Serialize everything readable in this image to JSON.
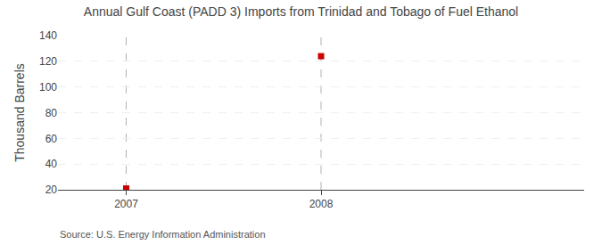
{
  "chart_data": {
    "type": "scatter",
    "title": "Annual Gulf Coast (PADD 3) Imports from Trinidad and Tobago of Fuel Ethanol",
    "ylabel": "Thousand Barrels",
    "x": [
      2007,
      2008
    ],
    "values": [
      21,
      124
    ],
    "color": "#cc0000",
    "marker": "square",
    "xlim": [
      2006.65,
      2009.35
    ],
    "xticks": [
      2007,
      2008
    ],
    "ylim": [
      20,
      140
    ],
    "yticks": [
      20,
      40,
      60,
      80,
      100,
      120,
      140
    ],
    "grid": true,
    "annotations": [
      "Source: U.S. Energy Information Administration"
    ]
  }
}
